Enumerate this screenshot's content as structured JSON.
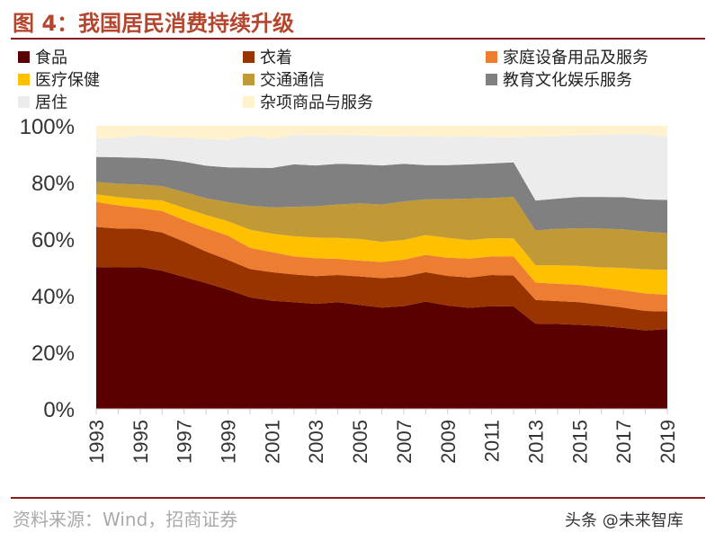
{
  "title": "图 4：我国居民消费持续升级",
  "source": "资料来源：Wind，招商证券",
  "watermark": "头条 @未来智库",
  "chart_data": {
    "type": "area",
    "stacked": true,
    "title": "图 4：我国居民消费持续升级",
    "xlabel": "",
    "ylabel": "",
    "ylim": [
      0,
      100
    ],
    "yticks": [
      "0%",
      "20%",
      "40%",
      "60%",
      "80%",
      "100%"
    ],
    "legend_position": "top",
    "grid": false,
    "x": [
      1993,
      1994,
      1995,
      1996,
      1997,
      1998,
      1999,
      2000,
      2001,
      2002,
      2003,
      2004,
      2005,
      2006,
      2007,
      2008,
      2009,
      2010,
      2011,
      2012,
      2013,
      2014,
      2015,
      2016,
      2017,
      2018,
      2019
    ],
    "xticks": [
      "1993",
      "1995",
      "1997",
      "1999",
      "2001",
      "2003",
      "2005",
      "2007",
      "2009",
      "2011",
      "2013",
      "2015",
      "2017",
      "2019"
    ],
    "series": [
      {
        "name": "食品",
        "color": "#5a0000",
        "values": [
          50.1,
          50.0,
          50.1,
          48.8,
          46.6,
          44.5,
          42.1,
          39.4,
          38.2,
          37.7,
          37.1,
          37.7,
          36.7,
          35.8,
          36.3,
          37.9,
          36.5,
          35.7,
          36.3,
          36.2,
          30.1,
          30.0,
          29.7,
          29.3,
          28.6,
          27.7,
          28.2
        ]
      },
      {
        "name": "衣着",
        "color": "#993300",
        "values": [
          14.2,
          13.7,
          13.5,
          13.5,
          12.5,
          11.1,
          10.5,
          10.0,
          10.1,
          9.8,
          9.8,
          9.6,
          10.1,
          10.4,
          10.4,
          10.4,
          10.5,
          10.7,
          11.0,
          10.9,
          8.4,
          8.1,
          8.0,
          7.5,
          7.2,
          6.9,
          6.2
        ]
      },
      {
        "name": "家庭设备用品及服务",
        "color": "#ed7d31",
        "values": [
          8.8,
          8.2,
          7.4,
          7.6,
          7.6,
          8.2,
          8.6,
          7.5,
          7.1,
          6.4,
          6.3,
          5.7,
          5.6,
          5.7,
          6.0,
          6.1,
          6.4,
          6.7,
          6.6,
          6.7,
          6.1,
          6.1,
          6.1,
          6.1,
          6.1,
          6.2,
          5.9
        ]
      },
      {
        "name": "医疗保健",
        "color": "#ffc000",
        "values": [
          2.7,
          2.9,
          3.1,
          3.7,
          4.3,
          4.7,
          5.1,
          6.4,
          6.5,
          7.1,
          7.3,
          7.4,
          7.6,
          7.1,
          7.0,
          7.0,
          7.0,
          6.5,
          6.4,
          6.4,
          6.1,
          6.5,
          6.7,
          7.1,
          7.9,
          8.5,
          8.8
        ]
      },
      {
        "name": "交通通信",
        "color": "#c19a36",
        "values": [
          4.4,
          4.7,
          5.2,
          5.1,
          5.6,
          5.9,
          6.7,
          8.5,
          9.3,
          10.4,
          11.1,
          11.8,
          12.6,
          13.2,
          13.6,
          12.6,
          13.7,
          14.7,
          14.2,
          14.7,
          12.3,
          12.9,
          13.3,
          13.7,
          13.6,
          13.3,
          13.0
        ]
      },
      {
        "name": "教育文化娱乐服务",
        "color": "#808080",
        "values": [
          8.8,
          9.4,
          9.4,
          9.6,
          10.7,
          11.5,
          12.3,
          13.4,
          13.9,
          15.0,
          14.4,
          14.4,
          13.8,
          13.8,
          13.3,
          12.1,
          12.0,
          12.1,
          12.2,
          12.2,
          10.6,
          10.7,
          11.1,
          11.2,
          11.4,
          11.4,
          11.7
        ]
      },
      {
        "name": "居住",
        "color": "#ececec",
        "values": [
          6.6,
          6.8,
          8.0,
          7.7,
          8.6,
          9.4,
          9.8,
          11.3,
          10.3,
          10.4,
          10.7,
          10.2,
          10.2,
          10.4,
          9.8,
          10.2,
          10.0,
          9.9,
          9.3,
          8.9,
          22.7,
          22.1,
          21.8,
          21.9,
          22.4,
          23.0,
          22.4
        ]
      },
      {
        "name": "杂项商品与服务",
        "color": "#fff2cc",
        "values": [
          4.4,
          4.3,
          3.3,
          4.0,
          4.1,
          4.7,
          4.9,
          3.5,
          4.6,
          3.2,
          3.3,
          3.2,
          3.4,
          3.6,
          3.6,
          3.7,
          3.9,
          3.7,
          4.0,
          4.0,
          3.7,
          3.6,
          3.3,
          3.2,
          2.8,
          3.0,
          3.8
        ]
      }
    ]
  }
}
